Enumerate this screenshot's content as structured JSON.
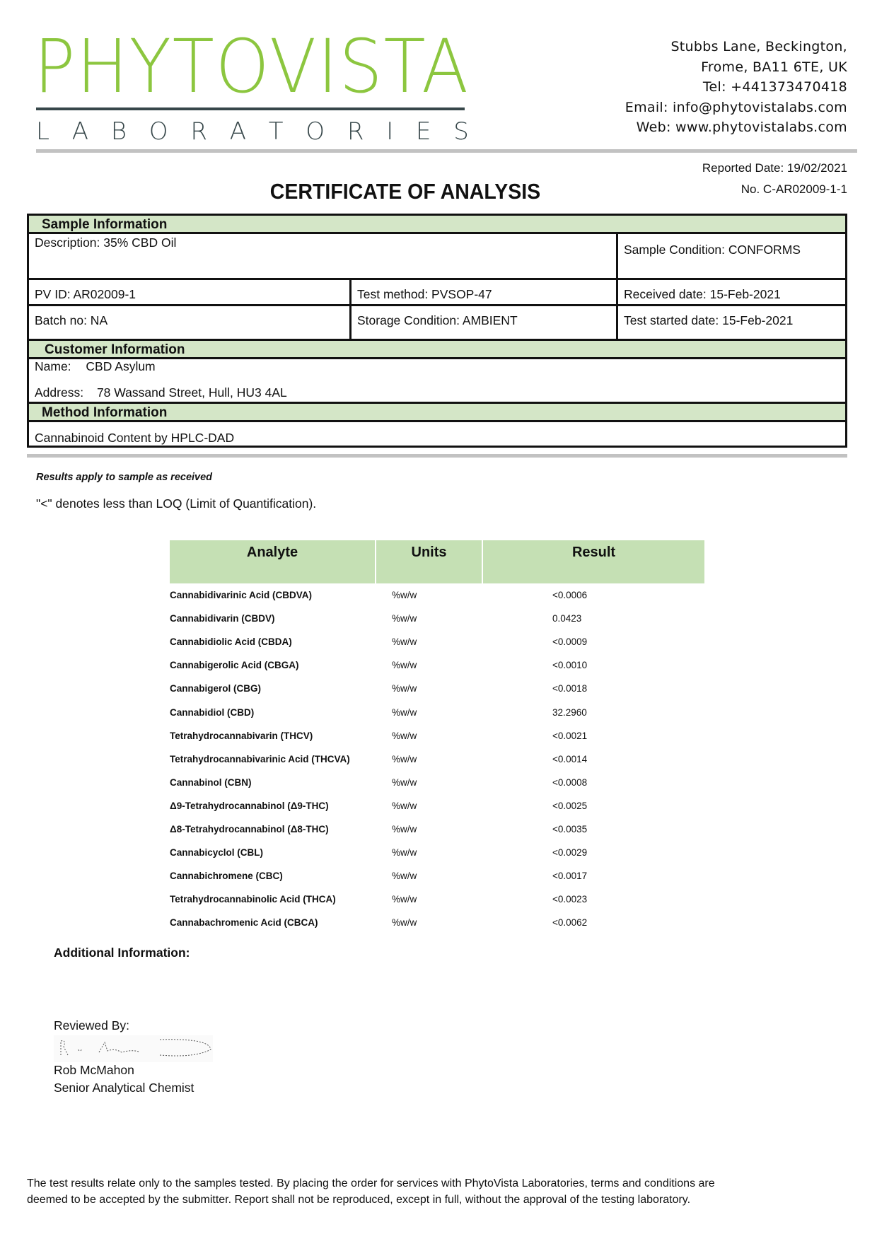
{
  "header": {
    "logo_text": "PHYTOVISTA",
    "logo_subtext": "LABORATORIES",
    "brand_color": "#8cc63f",
    "address_lines": [
      "Stubbs Lane, Beckington,",
      "Frome, BA11 6TE, UK",
      "Tel: +441373470418",
      "Email: info@phytovistalabs.com",
      "Web: www.phytovistalabs.com"
    ],
    "reported_date": "Reported Date: 19/02/2021",
    "certificate_no": "No. C-AR02009-1-1",
    "title": "CERTIFICATE OF ANALYSIS"
  },
  "sample": {
    "heading": "Sample Information",
    "description": "Description: 35% CBD Oil",
    "condition": "Sample Condition: CONFORMS",
    "pv_id": "PV ID: AR02009-1",
    "test_method": "Test method: PVSOP-47",
    "received": "Received date: 15-Feb-2021",
    "batch": "Batch no: NA",
    "storage": "Storage Condition: AMBIENT",
    "test_started": "Test started date: 15-Feb-2021"
  },
  "customer": {
    "heading": "Customer Information",
    "name_label": "Name:",
    "name": "CBD Asylum",
    "address_label": "Address:",
    "address": "78 Wassand Street, Hull, HU3 4AL"
  },
  "method": {
    "heading": "Method Information",
    "text": "Cannabinoid Content by HPLC-DAD"
  },
  "notes": {
    "results_apply": "Results apply to sample as received",
    "loq": "\"<\" denotes less than LOQ (Limit of Quantification)."
  },
  "results": {
    "headers": [
      "Analyte",
      "Units",
      "Result"
    ],
    "rows": [
      [
        "Cannabidivarinic Acid (CBDVA)",
        "%w/w",
        "<0.0006"
      ],
      [
        "Cannabidivarin (CBDV)",
        "%w/w",
        "0.0423"
      ],
      [
        "Cannabidiolic Acid (CBDA)",
        "%w/w",
        "<0.0009"
      ],
      [
        "Cannabigerolic Acid (CBGA)",
        "%w/w",
        "<0.0010"
      ],
      [
        "Cannabigerol (CBG)",
        "%w/w",
        "<0.0018"
      ],
      [
        "Cannabidiol (CBD)",
        "%w/w",
        "32.2960"
      ],
      [
        "Tetrahydrocannabivarin (THCV)",
        "%w/w",
        "<0.0021"
      ],
      [
        "Tetrahydrocannabivarinic Acid (THCVA)",
        "%w/w",
        "<0.0014"
      ],
      [
        "Cannabinol (CBN)",
        "%w/w",
        "<0.0008"
      ],
      [
        "Δ9-Tetrahydrocannabinol (Δ9-THC)",
        "%w/w",
        "<0.0025"
      ],
      [
        "Δ8-Tetrahydrocannabinol (Δ8-THC)",
        "%w/w",
        "<0.0035"
      ],
      [
        "Cannabicyclol (CBL)",
        "%w/w",
        "<0.0029"
      ],
      [
        "Cannabichromene (CBC)",
        "%w/w",
        "<0.0017"
      ],
      [
        "Tetrahydrocannabinolic Acid (THCA)",
        "%w/w",
        "<0.0023"
      ],
      [
        "Cannabachromenic Acid (CBCA)",
        "%w/w",
        "<0.0062"
      ]
    ]
  },
  "additional_info": "Additional Information:",
  "review": {
    "label": "Reviewed By:",
    "name": "Rob McMahon",
    "role": "Senior Analytical Chemist"
  },
  "footer": {
    "line1": "The test results relate only to the samples tested.  By placing the order for services with PhytoVista Laboratories, terms and conditions are",
    "line2": "deemed to be accepted by the submitter. Report shall not be reproduced, except in full, without the approval of the testing laboratory."
  }
}
